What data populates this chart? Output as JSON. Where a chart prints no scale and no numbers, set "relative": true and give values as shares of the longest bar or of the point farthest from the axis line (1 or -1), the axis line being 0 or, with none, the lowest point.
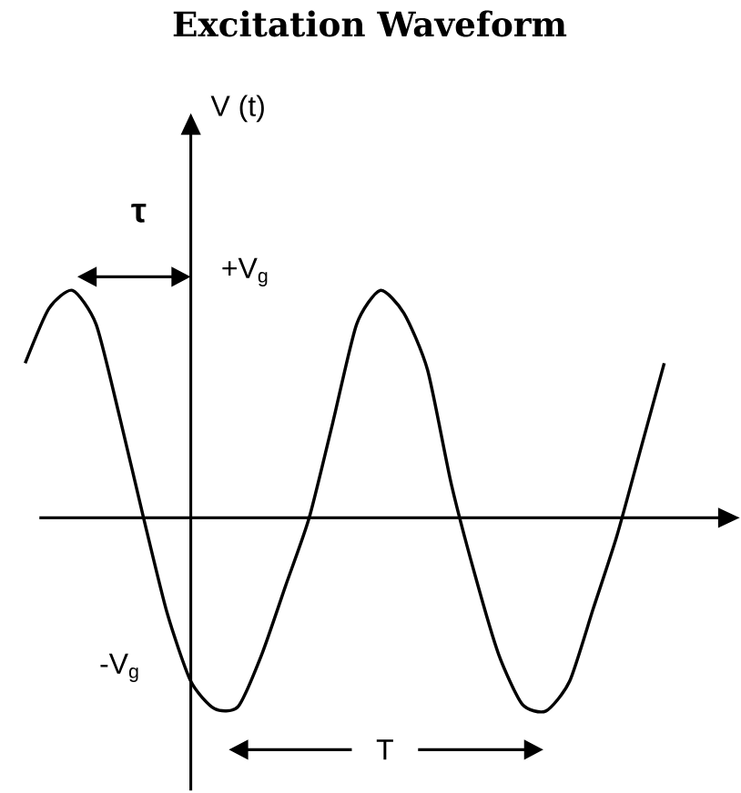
{
  "chart_data": {
    "type": "line",
    "relative": true,
    "title": "Excitation Waveform",
    "categories": [
      null,
      null,
      null,
      null,
      null,
      null,
      null,
      null,
      null,
      null,
      null,
      null,
      null,
      null,
      null,
      null,
      null,
      null,
      null,
      null,
      null,
      null,
      null,
      null,
      null,
      null,
      null,
      null
    ],
    "values": [
      0.68,
      0.92,
      1.0,
      0.85,
      0.44,
      0.0,
      -0.42,
      -0.72,
      -0.84,
      -0.83,
      -0.6,
      -0.3,
      0.0,
      0.42,
      0.85,
      1.0,
      0.9,
      0.65,
      0.15,
      -0.25,
      -0.6,
      -0.82,
      -0.85,
      -0.72,
      -0.4,
      -0.08,
      0.3,
      0.68
    ],
    "color": "#000000",
    "annotations": [
      "τ",
      "+V$_{g}$",
      "-V$_{g}$",
      "T",
      "V (t)"
    ]
  }
}
